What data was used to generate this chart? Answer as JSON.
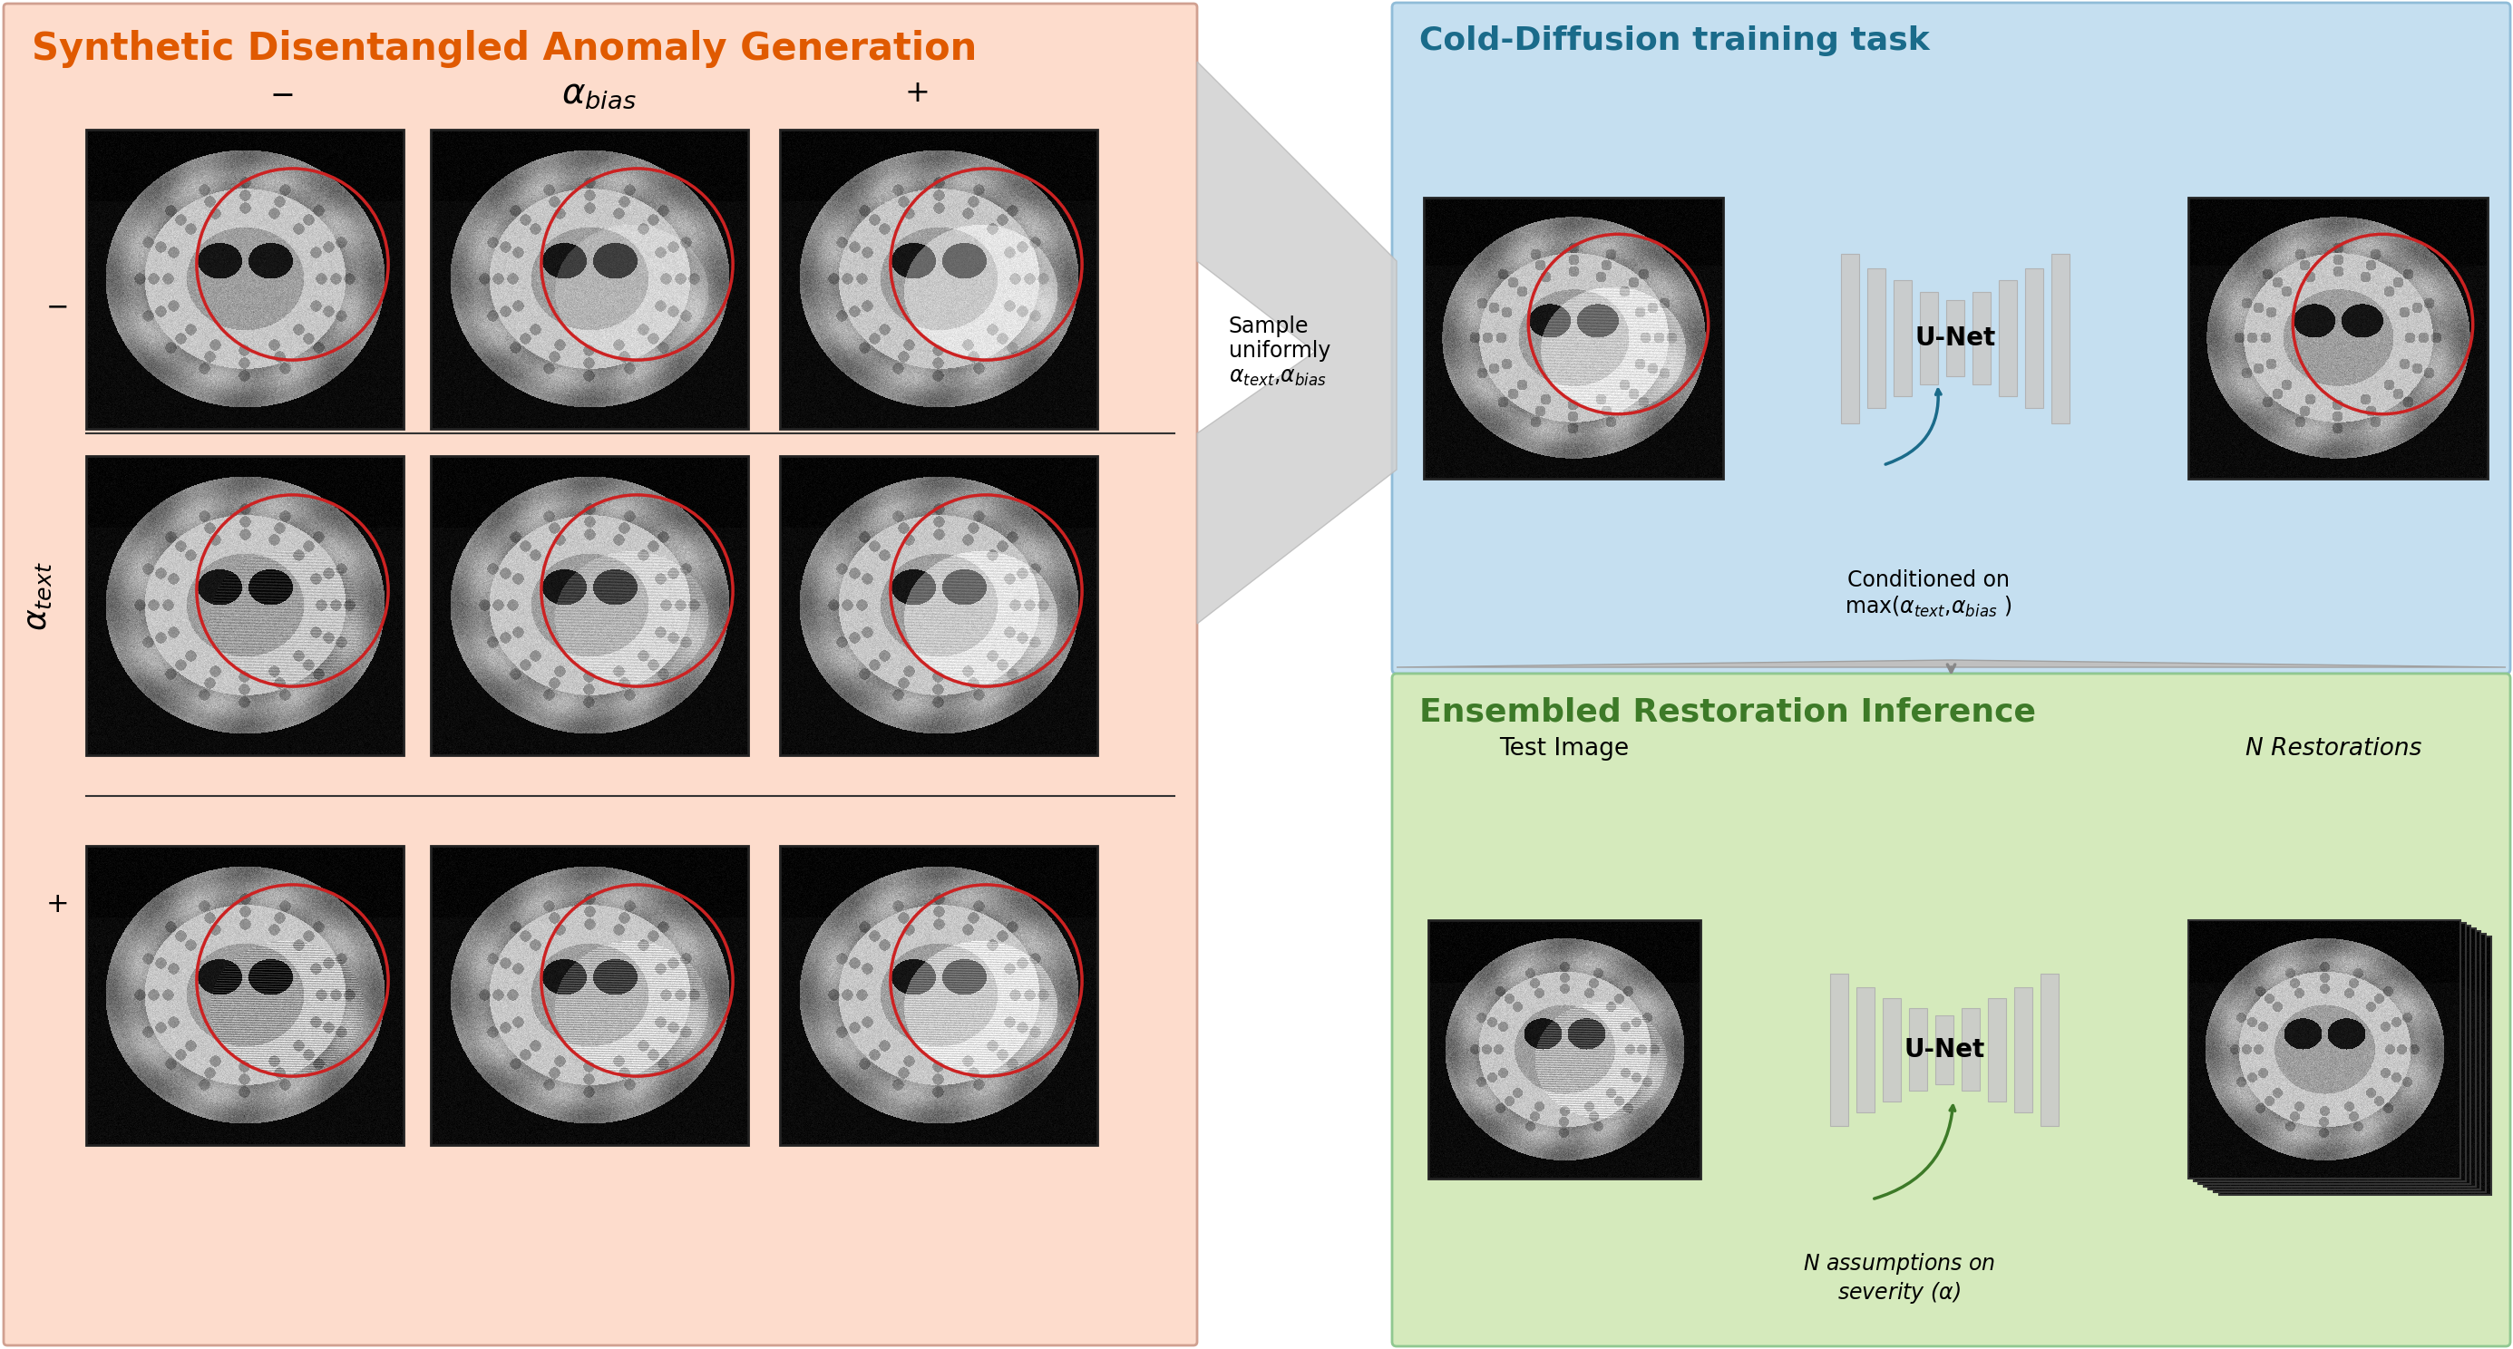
{
  "left_panel_title": "Synthetic Disentangled Anomaly Generation",
  "left_panel_title_color": "#E05A00",
  "left_panel_bg": "#FDDCCC",
  "top_right_title": "Cold-Diffusion training task",
  "top_right_title_color": "#1A6B8A",
  "top_right_bg": "#C5DFF0",
  "bottom_right_title": "Ensembled Restoration Inference",
  "bottom_right_title_color": "#3D7A28",
  "bottom_right_bg": "#D5EABC",
  "arrow_color": "#1A6B8A",
  "arrow_green": "#3D7A28",
  "unet_bar_color": "#C0C0C0",
  "sample_text": "Sample\nuniformly\nα_text,α_bias",
  "conditioned_text": "Conditioned on\nmax(α_text,α_bias )",
  "n_assumptions_text": "N assumptions on\nseverity (α)",
  "test_image_label": "Test Image",
  "n_restorations_label": "N Restorations"
}
